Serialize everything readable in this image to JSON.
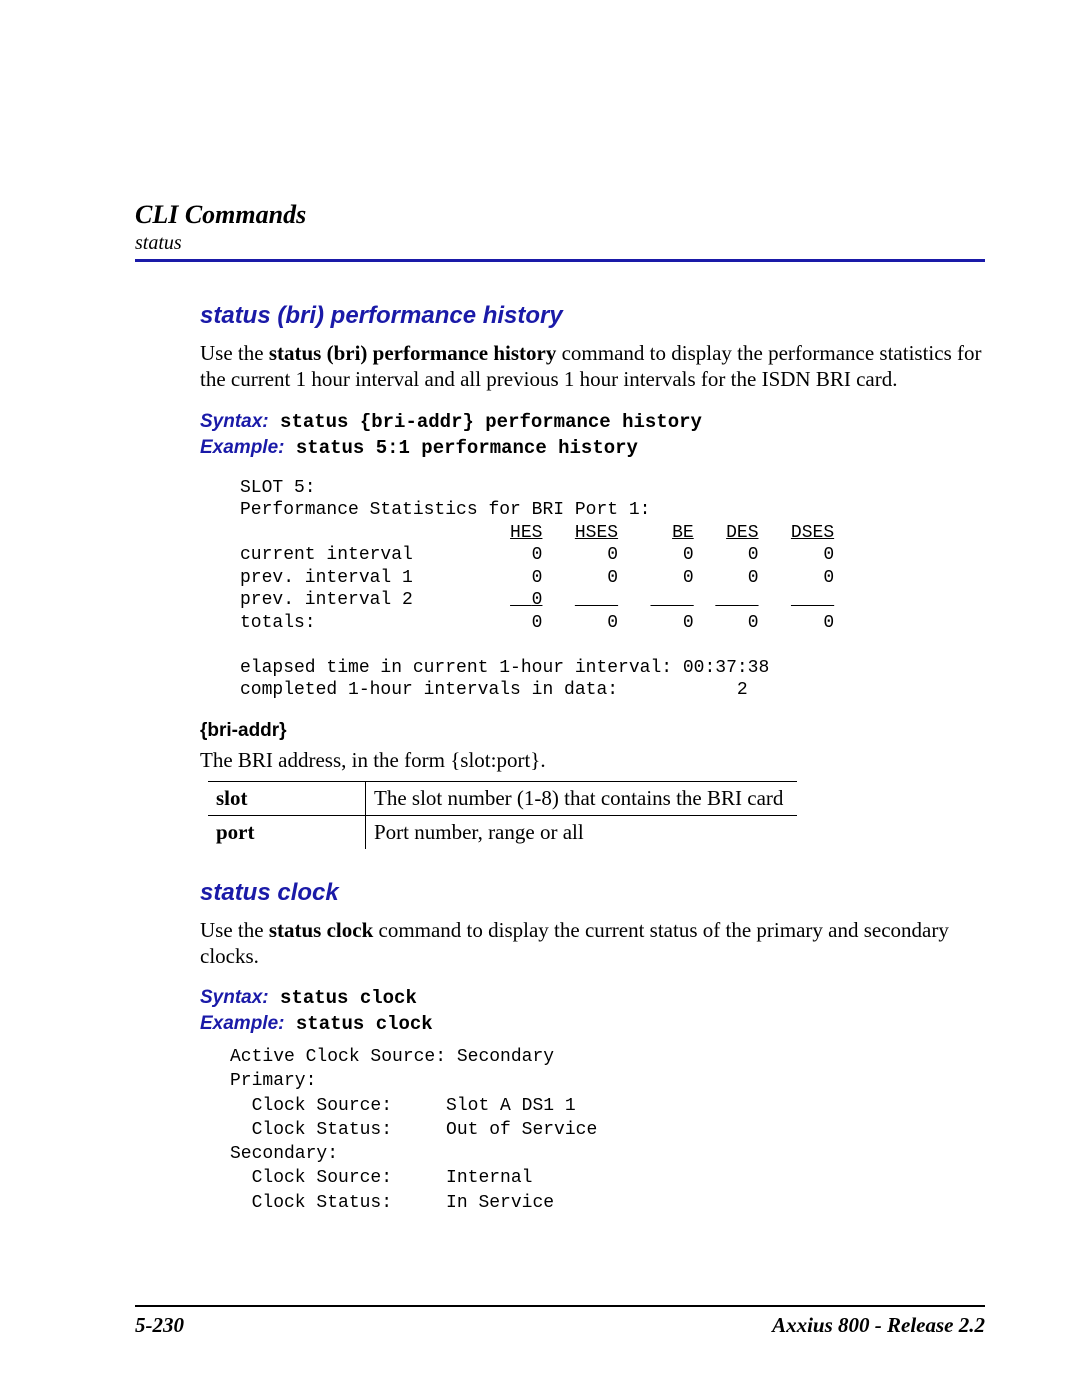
{
  "header": {
    "title": "CLI Commands",
    "subtitle": "status"
  },
  "section1": {
    "title": "status (bri) performance history",
    "intro_pre": "Use the ",
    "intro_bold": "status (bri) performance history",
    "intro_post": " command to display the performance statistics for the current 1 hour interval and all previous 1 hour intervals for the ISDN BRI card.",
    "syntax_label": "Syntax:",
    "syntax_text": " status {bri-addr} performance history",
    "example_label": "Example:",
    "example_text": " status 5:1 performance history",
    "output": {
      "line1": "SLOT 5:",
      "line2": "Performance Statistics for BRI Port 1:",
      "h1": "HES",
      "h2": "HSES",
      "h3": "BE",
      "h4": "DES",
      "h5": "DSES",
      "r1_label": "current interval",
      "r1_c1": "0",
      "r1_c2": "0",
      "r1_c3": "0",
      "r1_c4": "0",
      "r1_c5": "0",
      "r2_label": "prev. interval 1",
      "r2_c1": "0",
      "r2_c2": "0",
      "r2_c3": "0",
      "r2_c4": "0",
      "r2_c5": "0",
      "r3_label": "prev. interval 2",
      "r3_c1": "0",
      "r4_label": "totals:",
      "r4_c1": "0",
      "r4_c2": "0",
      "r4_c3": "0",
      "r4_c4": "0",
      "r4_c5": "0",
      "line_elapsed": "elapsed time in current 1-hour interval: 00:37:38",
      "line_completed": "completed 1-hour intervals in data:           2"
    },
    "param_heading": "{bri-addr}",
    "param_desc": "The BRI address, in the form {slot:port}.",
    "table": {
      "r1k": "slot",
      "r1v": "The slot number (1-8) that contains the BRI card",
      "r2k": "port",
      "r2v": "Port number, range or all"
    }
  },
  "section2": {
    "title": "status clock",
    "intro_pre": "Use the ",
    "intro_bold": "status clock",
    "intro_post": " command to display the current status of the primary and secondary clocks.",
    "syntax_label": "Syntax:",
    "syntax_text": " status clock",
    "example_label": "Example:",
    "example_text": " status clock",
    "output": {
      "l1": "Active Clock Source: Secondary",
      "l2": "Primary:",
      "l3": "  Clock Source:     Slot A DS1 1",
      "l4": "  Clock Status:     Out of Service",
      "l5": "Secondary:",
      "l6": "  Clock Source:     Internal",
      "l7": "  Clock Status:     In Service"
    }
  },
  "footer": {
    "left": "5-230",
    "right": "Axxius 800 - Release 2.2"
  }
}
